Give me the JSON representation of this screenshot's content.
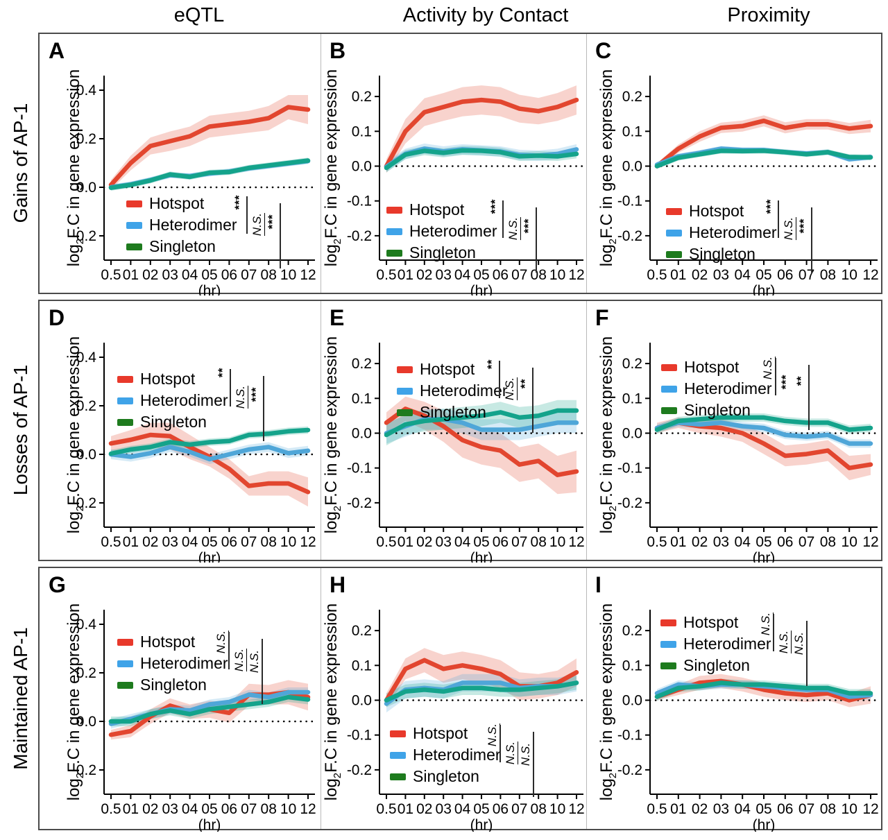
{
  "figure": {
    "column_headers": [
      "eQTL",
      "Activity by Contact",
      "Proximity"
    ],
    "row_labels": [
      "Gains of AP-1",
      "Losses of AP-1",
      "Maintained AP-1"
    ],
    "ylabel": {
      "pre": "log",
      "sub": "2",
      "post": "F.C in gene expression"
    },
    "xlabel": "(hr)",
    "xtick_labels": [
      "0.5",
      "01",
      "02",
      "03",
      "04",
      "05",
      "06",
      "07",
      "08",
      "10",
      "12"
    ],
    "legend_items": [
      {
        "key": "hotspot",
        "label": "Hotspot",
        "swatch_color": "#e8392b"
      },
      {
        "key": "heterodimer",
        "label": "Heterodimer",
        "swatch_color": "#3fa3e8"
      },
      {
        "key": "singleton",
        "label": "Singleton",
        "swatch_color": "#1e7b1e"
      }
    ],
    "colors": {
      "hotspot_line": "#e2462f",
      "heterodimer_line": "#4fa6d8",
      "singleton_line": "#14a38b",
      "axis": "#000000",
      "zero_line": "#000000",
      "box_border": "#4b4b4b",
      "divider": "#b9b9b9"
    }
  },
  "chart_data": [
    {
      "type": "line",
      "panel_label": "A",
      "row": 0,
      "col": 0,
      "ylim": [
        -0.3,
        0.46
      ],
      "ytick_values": [
        0.4,
        0.2,
        0.0,
        -0.2
      ],
      "ytick_labels": [
        "0.4",
        "0.2",
        "0.0",
        "-0.2"
      ],
      "x_hours": [
        0.5,
        1,
        2,
        3,
        4,
        5,
        6,
        7,
        8,
        10,
        12
      ],
      "series": [
        {
          "key": "hotspot",
          "name": "Hotspot",
          "values": [
            0.01,
            0.1,
            0.17,
            0.19,
            0.21,
            0.25,
            0.26,
            0.27,
            0.285,
            0.33,
            0.32
          ],
          "band": [
            0.02,
            0.03,
            0.035,
            0.04,
            0.04,
            0.045,
            0.045,
            0.045,
            0.05,
            0.05,
            0.06
          ]
        },
        {
          "key": "heterodimer",
          "name": "Heterodimer",
          "values": [
            0.0,
            0.012,
            0.03,
            0.05,
            0.046,
            0.057,
            0.065,
            0.078,
            0.088,
            0.098,
            0.108
          ],
          "band": 0.012
        },
        {
          "key": "singleton",
          "name": "Singleton",
          "values": [
            -0.002,
            0.01,
            0.028,
            0.053,
            0.043,
            0.06,
            0.063,
            0.08,
            0.09,
            0.1,
            0.11
          ],
          "band": 0.012
        }
      ],
      "sig": [
        "***",
        "N.S.",
        "***"
      ],
      "hints": {
        "legend": [
          125,
          232
        ],
        "sig": [
          278,
          232
        ]
      }
    },
    {
      "type": "line",
      "panel_label": "B",
      "row": 0,
      "col": 1,
      "ylim": [
        -0.27,
        0.26
      ],
      "ytick_values": [
        0.2,
        0.1,
        0.0,
        -0.1,
        -0.2
      ],
      "ytick_labels": [
        "0.2",
        "0.1",
        "0.0",
        "-0.1",
        "-0.2"
      ],
      "x_hours": [
        0.5,
        1,
        2,
        3,
        4,
        5,
        6,
        7,
        8,
        10,
        12
      ],
      "series": [
        {
          "key": "hotspot",
          "name": "Hotspot",
          "values": [
            0.0,
            0.1,
            0.155,
            0.17,
            0.185,
            0.19,
            0.185,
            0.165,
            0.158,
            0.17,
            0.19
          ],
          "band": [
            0.02,
            0.035,
            0.04,
            0.04,
            0.042,
            0.042,
            0.042,
            0.04,
            0.038,
            0.04,
            0.042
          ]
        },
        {
          "key": "heterodimer",
          "name": "Heterodimer",
          "values": [
            -0.002,
            0.035,
            0.05,
            0.042,
            0.048,
            0.045,
            0.042,
            0.032,
            0.03,
            0.035,
            0.048
          ],
          "band": 0.015
        },
        {
          "key": "singleton",
          "name": "Singleton",
          "values": [
            -0.005,
            0.033,
            0.044,
            0.038,
            0.045,
            0.044,
            0.04,
            0.028,
            0.03,
            0.028,
            0.035
          ],
          "band": 0.013
        }
      ],
      "sig": [
        "***",
        "N.S.",
        "***"
      ],
      "hints": {
        "legend": [
          95,
          241
        ],
        "sig": [
          242,
          238
        ]
      }
    },
    {
      "type": "line",
      "panel_label": "C",
      "row": 0,
      "col": 2,
      "ylim": [
        -0.27,
        0.26
      ],
      "ytick_values": [
        0.2,
        0.1,
        0.0,
        -0.1,
        -0.2
      ],
      "ytick_labels": [
        "0.2",
        "0.1",
        "0.0",
        "-0.1",
        "-0.2"
      ],
      "x_hours": [
        0.5,
        1,
        2,
        3,
        4,
        5,
        6,
        7,
        8,
        10,
        12
      ],
      "series": [
        {
          "key": "hotspot",
          "name": "Hotspot",
          "values": [
            0.0,
            0.05,
            0.085,
            0.11,
            0.115,
            0.13,
            0.11,
            0.12,
            0.12,
            0.108,
            0.115
          ],
          "band": [
            0.008,
            0.012,
            0.015,
            0.015,
            0.016,
            0.016,
            0.016,
            0.015,
            0.015,
            0.016,
            0.018
          ]
        },
        {
          "key": "heterodimer",
          "name": "Heterodimer",
          "values": [
            0.004,
            0.028,
            0.038,
            0.05,
            0.046,
            0.046,
            0.04,
            0.036,
            0.04,
            0.02,
            0.026
          ],
          "band": 0.008
        },
        {
          "key": "singleton",
          "name": "Singleton",
          "values": [
            0.0,
            0.024,
            0.034,
            0.044,
            0.043,
            0.044,
            0.04,
            0.034,
            0.04,
            0.026,
            0.025
          ],
          "band": 0.008
        }
      ],
      "sig": [
        "***",
        "N.S.",
        "***"
      ],
      "hints": {
        "legend": [
          115,
          243
        ],
        "sig": [
          256,
          238
        ]
      }
    },
    {
      "type": "line",
      "panel_label": "D",
      "row": 1,
      "col": 0,
      "ylim": [
        -0.3,
        0.46
      ],
      "ytick_values": [
        0.4,
        0.2,
        0.0,
        -0.2
      ],
      "ytick_labels": [
        "0.4",
        "0.2",
        "0.0",
        "-0.2"
      ],
      "x_hours": [
        0.5,
        1,
        2,
        3,
        4,
        5,
        6,
        7,
        8,
        10,
        12
      ],
      "series": [
        {
          "key": "hotspot",
          "name": "Hotspot",
          "values": [
            0.045,
            0.06,
            0.08,
            0.075,
            0.03,
            -0.01,
            -0.06,
            -0.13,
            -0.12,
            -0.12,
            -0.155
          ],
          "band": [
            0.03,
            0.04,
            0.05,
            0.055,
            0.05,
            0.04,
            0.04,
            0.04,
            0.05,
            0.05,
            0.06
          ]
        },
        {
          "key": "heterodimer",
          "name": "Heterodimer",
          "values": [
            0.0,
            -0.01,
            0.005,
            0.03,
            0.01,
            -0.02,
            0.0,
            0.02,
            0.03,
            0.005,
            0.015
          ],
          "band": 0.02
        },
        {
          "key": "singleton",
          "name": "Singleton",
          "values": [
            0.003,
            0.02,
            0.03,
            0.05,
            0.04,
            0.05,
            0.055,
            0.08,
            0.085,
            0.095,
            0.1
          ],
          "band": 0.015
        }
      ],
      "sig": [
        "**",
        "N.S.",
        "***"
      ],
      "hints": {
        "legend": [
          112,
          100
        ],
        "sig": [
          254,
          96
        ]
      }
    },
    {
      "type": "line",
      "panel_label": "E",
      "row": 1,
      "col": 1,
      "ylim": [
        -0.27,
        0.26
      ],
      "ytick_values": [
        0.2,
        0.1,
        0.0,
        -0.1,
        -0.2
      ],
      "ytick_labels": [
        "0.2",
        "0.1",
        "0.0",
        "-0.1",
        "-0.2"
      ],
      "x_hours": [
        0.5,
        1,
        2,
        3,
        4,
        5,
        6,
        7,
        8,
        10,
        12
      ],
      "series": [
        {
          "key": "hotspot",
          "name": "Hotspot",
          "values": [
            0.03,
            0.07,
            0.05,
            0.02,
            -0.02,
            -0.04,
            -0.05,
            -0.09,
            -0.08,
            -0.12,
            -0.11
          ],
          "band": [
            0.03,
            0.035,
            0.04,
            0.045,
            0.05,
            0.05,
            0.05,
            0.05,
            0.05,
            0.055,
            0.06
          ]
        },
        {
          "key": "heterodimer",
          "name": "Heterodimer",
          "values": [
            0.0,
            0.02,
            0.04,
            0.04,
            0.03,
            0.01,
            0.01,
            0.01,
            0.02,
            0.03,
            0.03
          ],
          "band": 0.03
        },
        {
          "key": "singleton",
          "name": "Singleton",
          "values": [
            -0.005,
            0.025,
            0.035,
            0.04,
            0.045,
            0.05,
            0.06,
            0.045,
            0.05,
            0.065,
            0.065
          ],
          "band": 0.03
        }
      ],
      "sig": [
        "**",
        "N.S.",
        "**"
      ],
      "hints": {
        "legend": [
          110,
          86
        ],
        "sig": [
          237,
          84
        ]
      }
    },
    {
      "type": "line",
      "panel_label": "F",
      "row": 1,
      "col": 2,
      "ylim": [
        -0.27,
        0.26
      ],
      "ytick_values": [
        0.2,
        0.1,
        0.0,
        -0.1,
        -0.2
      ],
      "ytick_labels": [
        "0.2",
        "0.1",
        "0.0",
        "-0.1",
        "-0.2"
      ],
      "x_hours": [
        0.5,
        1,
        2,
        3,
        4,
        5,
        6,
        7,
        8,
        10,
        12
      ],
      "series": [
        {
          "key": "hotspot",
          "name": "Hotspot",
          "values": [
            0.015,
            0.03,
            0.02,
            0.015,
            0.0,
            -0.03,
            -0.065,
            -0.06,
            -0.05,
            -0.1,
            -0.09
          ],
          "band": [
            0.015,
            0.015,
            0.02,
            0.025,
            0.025,
            0.03,
            0.03,
            0.03,
            0.03,
            0.035,
            0.03
          ]
        },
        {
          "key": "heterodimer",
          "name": "Heterodimer",
          "values": [
            0.015,
            0.03,
            0.025,
            0.03,
            0.02,
            0.015,
            -0.005,
            -0.01,
            -0.005,
            -0.03,
            -0.03
          ],
          "band": 0.012
        },
        {
          "key": "singleton",
          "name": "Singleton",
          "values": [
            0.01,
            0.035,
            0.04,
            0.045,
            0.045,
            0.045,
            0.035,
            0.03,
            0.03,
            0.01,
            0.015
          ],
          "band": 0.012
        }
      ],
      "sig": [
        "N.S.",
        "***",
        "**"
      ],
      "hints": {
        "legend": [
          108,
          83
        ],
        "sig": [
          252,
          80
        ]
      }
    },
    {
      "type": "line",
      "panel_label": "G",
      "row": 2,
      "col": 0,
      "ylim": [
        -0.3,
        0.46
      ],
      "ytick_values": [
        0.4,
        0.2,
        0.0,
        -0.2
      ],
      "ytick_labels": [
        "0.4",
        "0.2",
        "0.0",
        "-0.2"
      ],
      "x_hours": [
        0.5,
        1,
        2,
        3,
        4,
        5,
        6,
        7,
        8,
        10,
        12
      ],
      "series": [
        {
          "key": "hotspot",
          "name": "Hotspot",
          "values": [
            -0.055,
            -0.04,
            0.02,
            0.065,
            0.04,
            0.05,
            0.035,
            0.11,
            0.11,
            0.12,
            0.1
          ],
          "band": [
            0.02,
            0.025,
            0.03,
            0.03,
            0.03,
            0.035,
            0.04,
            0.045,
            0.04,
            0.05,
            0.055
          ]
        },
        {
          "key": "heterodimer",
          "name": "Heterodimer",
          "values": [
            -0.01,
            0.01,
            0.03,
            0.05,
            0.045,
            0.07,
            0.08,
            0.11,
            0.1,
            0.12,
            0.12
          ],
          "band": 0.02
        },
        {
          "key": "singleton",
          "name": "Singleton",
          "values": [
            0.0,
            0.0,
            0.03,
            0.045,
            0.03,
            0.05,
            0.06,
            0.07,
            0.08,
            0.1,
            0.09
          ],
          "band": 0.02
        }
      ],
      "sig": [
        "N.S.",
        "N.S.",
        "N.S."
      ],
      "hints": {
        "legend": [
          112,
          94
        ],
        "sig": [
          252,
          90
        ]
      }
    },
    {
      "type": "line",
      "panel_label": "H",
      "row": 2,
      "col": 1,
      "ylim": [
        -0.27,
        0.26
      ],
      "ytick_values": [
        0.2,
        0.1,
        0.0,
        -0.1,
        -0.2
      ],
      "ytick_labels": [
        "0.2",
        "0.1",
        "0.0",
        "-0.1",
        "-0.2"
      ],
      "x_hours": [
        0.5,
        1,
        2,
        3,
        4,
        5,
        6,
        7,
        8,
        10,
        12
      ],
      "series": [
        {
          "key": "hotspot",
          "name": "Hotspot",
          "values": [
            0.0,
            0.09,
            0.115,
            0.09,
            0.1,
            0.09,
            0.075,
            0.04,
            0.04,
            0.05,
            0.08
          ],
          "band": [
            0.02,
            0.03,
            0.035,
            0.04,
            0.04,
            0.04,
            0.04,
            0.04,
            0.035,
            0.035,
            0.04
          ]
        },
        {
          "key": "heterodimer",
          "name": "Heterodimer",
          "values": [
            -0.01,
            0.03,
            0.035,
            0.03,
            0.05,
            0.05,
            0.05,
            0.035,
            0.04,
            0.04,
            0.05
          ],
          "band": 0.025
        },
        {
          "key": "singleton",
          "name": "Singleton",
          "values": [
            0.0,
            0.025,
            0.03,
            0.025,
            0.035,
            0.035,
            0.03,
            0.03,
            0.035,
            0.04,
            0.05
          ],
          "band": 0.02
        }
      ],
      "sig": [
        "N.S.",
        "N.S.",
        "N.S."
      ],
      "hints": {
        "legend": [
          100,
          226
        ],
        "sig": [
          238,
          224
        ]
      }
    },
    {
      "type": "line",
      "panel_label": "I",
      "row": 2,
      "col": 2,
      "ylim": [
        -0.27,
        0.26
      ],
      "ytick_values": [
        0.2,
        0.1,
        0.0,
        -0.1,
        -0.2
      ],
      "ytick_labels": [
        "0.2",
        "0.1",
        "0.0",
        "-0.1",
        "-0.2"
      ],
      "x_hours": [
        0.5,
        1,
        2,
        3,
        4,
        5,
        6,
        7,
        8,
        10,
        12
      ],
      "series": [
        {
          "key": "hotspot",
          "name": "Hotspot",
          "values": [
            0.01,
            0.03,
            0.05,
            0.055,
            0.045,
            0.03,
            0.02,
            0.015,
            0.02,
            0.0,
            0.015
          ],
          "band": [
            0.01,
            0.015,
            0.02,
            0.02,
            0.02,
            0.02,
            0.02,
            0.02,
            0.02,
            0.02,
            0.025
          ]
        },
        {
          "key": "heterodimer",
          "name": "Heterodimer",
          "values": [
            0.02,
            0.045,
            0.04,
            0.045,
            0.045,
            0.04,
            0.035,
            0.03,
            0.03,
            0.01,
            0.015
          ],
          "band": 0.012
        },
        {
          "key": "singleton",
          "name": "Singleton",
          "values": [
            0.01,
            0.035,
            0.04,
            0.05,
            0.045,
            0.045,
            0.04,
            0.035,
            0.035,
            0.02,
            0.02
          ],
          "band": 0.012
        }
      ],
      "sig": [
        "N.S.",
        "N.S.",
        "N.S."
      ],
      "hints": {
        "legend": [
          107,
          66
        ],
        "sig": [
          249,
          64
        ]
      }
    }
  ]
}
